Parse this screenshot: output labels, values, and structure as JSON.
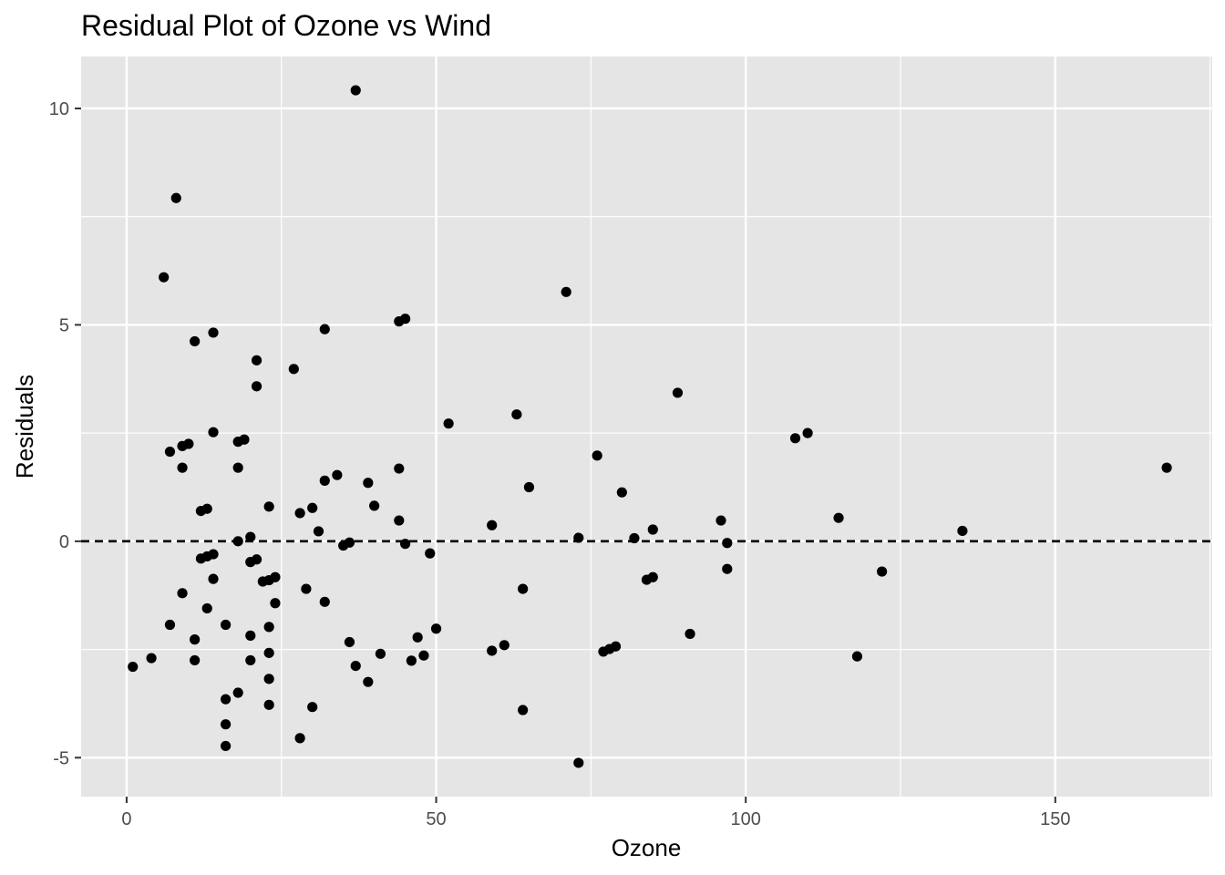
{
  "chart_data": {
    "type": "scatter",
    "title": "Residual Plot of Ozone vs Wind",
    "xlabel": "Ozone",
    "ylabel": "Residuals",
    "xlim": [
      -7.35,
      175.35
    ],
    "ylim": [
      -5.9,
      11.2
    ],
    "x_ticks": [
      0,
      50,
      100,
      150
    ],
    "x_tick_labels": [
      "0",
      "50",
      "100",
      "150"
    ],
    "y_ticks": [
      -5,
      0,
      5,
      10
    ],
    "y_tick_labels": [
      "-5",
      "0",
      "5",
      "10"
    ],
    "x_minor_gridlines": [
      -25,
      25,
      75,
      125,
      175
    ],
    "y_minor_gridlines": [
      -2.5,
      2.5,
      7.5
    ],
    "grid": true,
    "legend": "none",
    "reference_line": {
      "y": 0,
      "style": "dashed"
    },
    "colors": {
      "panel_background": "#e5e5e5",
      "gridline": "#ffffff",
      "point": "#000000",
      "tick_text": "#4d4d4d",
      "text": "#000000"
    },
    "points": [
      {
        "x": 1,
        "y": -2.9
      },
      {
        "x": 4,
        "y": -2.7
      },
      {
        "x": 6,
        "y": 6.1
      },
      {
        "x": 7,
        "y": 2.07
      },
      {
        "x": 7,
        "y": -1.93
      },
      {
        "x": 8,
        "y": 7.93
      },
      {
        "x": 9,
        "y": 2.2
      },
      {
        "x": 9,
        "y": 1.7
      },
      {
        "x": 9,
        "y": -1.2
      },
      {
        "x": 10,
        "y": 2.25
      },
      {
        "x": 11,
        "y": 4.62
      },
      {
        "x": 11,
        "y": -2.27
      },
      {
        "x": 11,
        "y": -2.75
      },
      {
        "x": 12,
        "y": 0.7
      },
      {
        "x": 12,
        "y": -0.4
      },
      {
        "x": 13,
        "y": 0.75
      },
      {
        "x": 13,
        "y": -0.35
      },
      {
        "x": 13,
        "y": -1.55
      },
      {
        "x": 14,
        "y": 4.82
      },
      {
        "x": 14,
        "y": 2.52
      },
      {
        "x": 14,
        "y": -0.3
      },
      {
        "x": 14,
        "y": -0.87
      },
      {
        "x": 16,
        "y": -1.93
      },
      {
        "x": 16,
        "y": -3.65
      },
      {
        "x": 16,
        "y": -4.23
      },
      {
        "x": 16,
        "y": -4.73
      },
      {
        "x": 18,
        "y": 2.3
      },
      {
        "x": 18,
        "y": 1.7
      },
      {
        "x": 18,
        "y": 0.0
      },
      {
        "x": 18,
        "y": -3.5
      },
      {
        "x": 19,
        "y": 2.35
      },
      {
        "x": 20,
        "y": 0.1
      },
      {
        "x": 20,
        "y": -0.48
      },
      {
        "x": 20,
        "y": -2.18
      },
      {
        "x": 20,
        "y": -2.75
      },
      {
        "x": 21,
        "y": 4.18
      },
      {
        "x": 21,
        "y": 3.58
      },
      {
        "x": 21,
        "y": -0.42
      },
      {
        "x": 22,
        "y": -0.93
      },
      {
        "x": 23,
        "y": 0.8
      },
      {
        "x": 23,
        "y": -0.9
      },
      {
        "x": 23,
        "y": -1.98
      },
      {
        "x": 23,
        "y": -2.58
      },
      {
        "x": 23,
        "y": -3.18
      },
      {
        "x": 23,
        "y": -3.78
      },
      {
        "x": 24,
        "y": -0.83
      },
      {
        "x": 24,
        "y": -1.43
      },
      {
        "x": 27,
        "y": 3.98
      },
      {
        "x": 28,
        "y": 0.65
      },
      {
        "x": 28,
        "y": -4.55
      },
      {
        "x": 29,
        "y": -1.1
      },
      {
        "x": 30,
        "y": 0.77
      },
      {
        "x": 30,
        "y": -3.83
      },
      {
        "x": 31,
        "y": 0.23
      },
      {
        "x": 32,
        "y": 4.9
      },
      {
        "x": 32,
        "y": 1.4
      },
      {
        "x": 32,
        "y": -1.4
      },
      {
        "x": 34,
        "y": 1.53
      },
      {
        "x": 35,
        "y": -0.1
      },
      {
        "x": 36,
        "y": -0.03
      },
      {
        "x": 36,
        "y": -2.33
      },
      {
        "x": 37,
        "y": 10.42
      },
      {
        "x": 37,
        "y": -2.88
      },
      {
        "x": 39,
        "y": 1.35
      },
      {
        "x": 39,
        "y": -3.25
      },
      {
        "x": 40,
        "y": 0.82
      },
      {
        "x": 41,
        "y": -2.6
      },
      {
        "x": 44,
        "y": 5.08
      },
      {
        "x": 44,
        "y": 1.68
      },
      {
        "x": 44,
        "y": 0.48
      },
      {
        "x": 45,
        "y": 5.14
      },
      {
        "x": 45,
        "y": -0.06
      },
      {
        "x": 46,
        "y": -2.76
      },
      {
        "x": 47,
        "y": -2.22
      },
      {
        "x": 48,
        "y": -2.64
      },
      {
        "x": 49,
        "y": -0.28
      },
      {
        "x": 50,
        "y": -2.02
      },
      {
        "x": 52,
        "y": 2.72
      },
      {
        "x": 59,
        "y": 0.37
      },
      {
        "x": 59,
        "y": -2.53
      },
      {
        "x": 61,
        "y": -2.4
      },
      {
        "x": 63,
        "y": 2.93
      },
      {
        "x": 64,
        "y": -1.1
      },
      {
        "x": 64,
        "y": -3.9
      },
      {
        "x": 65,
        "y": 1.25
      },
      {
        "x": 71,
        "y": 5.76
      },
      {
        "x": 73,
        "y": 0.08
      },
      {
        "x": 73,
        "y": -5.12
      },
      {
        "x": 76,
        "y": 1.98
      },
      {
        "x": 77,
        "y": -2.55
      },
      {
        "x": 78,
        "y": -2.49
      },
      {
        "x": 79,
        "y": -2.43
      },
      {
        "x": 80,
        "y": 1.13
      },
      {
        "x": 82,
        "y": 0.07
      },
      {
        "x": 84,
        "y": -0.89
      },
      {
        "x": 85,
        "y": 0.27
      },
      {
        "x": 85,
        "y": -0.83
      },
      {
        "x": 89,
        "y": 3.43
      },
      {
        "x": 91,
        "y": -2.14
      },
      {
        "x": 96,
        "y": 0.48
      },
      {
        "x": 97,
        "y": -0.04
      },
      {
        "x": 97,
        "y": -0.64
      },
      {
        "x": 108,
        "y": 2.38
      },
      {
        "x": 110,
        "y": 2.5
      },
      {
        "x": 115,
        "y": 0.54
      },
      {
        "x": 118,
        "y": -2.66
      },
      {
        "x": 122,
        "y": -0.7
      },
      {
        "x": 135,
        "y": 0.24
      },
      {
        "x": 168,
        "y": 1.7
      }
    ]
  }
}
